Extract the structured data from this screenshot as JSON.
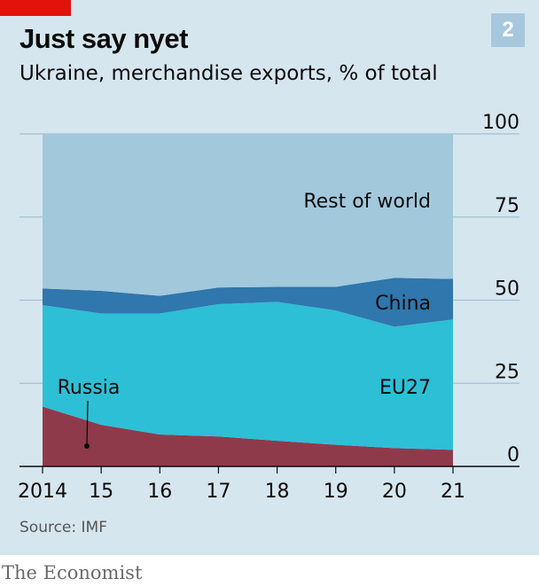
{
  "header": {
    "title": "Just say nyet",
    "subtitle": "Ukraine, merchandise exports, % of total",
    "badge": "2"
  },
  "footer": {
    "source": "Source: IMF",
    "brand": "The Economist"
  },
  "colors": {
    "russia": "#8f3a4b",
    "eu27": "#2dbfd6",
    "china": "#2f77ad",
    "rest": "#a2c8dc",
    "panel": "#d6e6ef",
    "accent": "#e3120b"
  },
  "chart_data": {
    "type": "area",
    "stacked": true,
    "x": [
      "2014",
      "15",
      "16",
      "17",
      "18",
      "19",
      "20",
      "21"
    ],
    "ylim": [
      0,
      100
    ],
    "yticks": [
      "0",
      "25",
      "50",
      "75",
      "100"
    ],
    "grid": true,
    "series": [
      {
        "name": "Russia",
        "values": [
          18,
          12.5,
          9.6,
          9,
          7.7,
          6.5,
          5.5,
          5
        ],
        "color": "#8f3a4b"
      },
      {
        "name": "EU27",
        "values": [
          30.5,
          33.5,
          36.4,
          39.8,
          41.8,
          40.4,
          36.5,
          39.2
        ],
        "color": "#2dbfd6"
      },
      {
        "name": "China",
        "values": [
          5,
          6.8,
          5.3,
          5,
          4.5,
          7.1,
          14.7,
          12.2
        ],
        "color": "#2f77ad"
      },
      {
        "name": "Rest of world",
        "values": [
          46.5,
          47.2,
          48.7,
          46.2,
          46,
          46,
          43.3,
          43.6
        ],
        "color": "#a2c8dc"
      }
    ]
  }
}
